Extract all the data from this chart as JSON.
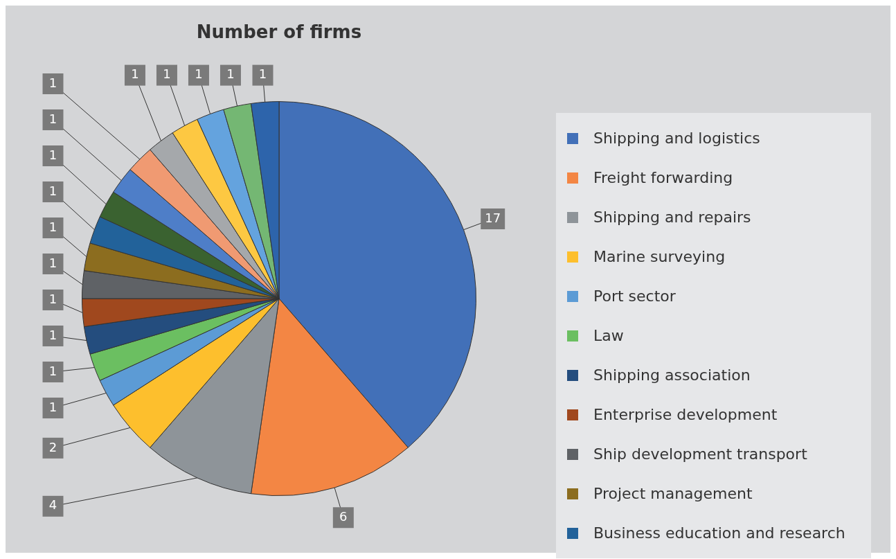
{
  "chart_data": {
    "type": "pie",
    "title": "Number of firms",
    "categories": [
      "Shipping and logistics",
      "Freight forwarding",
      "Shipping and repairs",
      "Marine surveying",
      "Port sector",
      "Law",
      "Shipping association",
      "Enterprise development",
      "Ship development transport",
      "Project management",
      "Business education and research",
      null,
      null,
      null,
      null,
      null,
      null,
      null,
      null
    ],
    "values": [
      17,
      6,
      4,
      2,
      1,
      1,
      1,
      1,
      1,
      1,
      1,
      1,
      1,
      1,
      1,
      1,
      1,
      1,
      1
    ],
    "colors": [
      "#4270b8",
      "#f38644",
      "#8e9499",
      "#fdbf2d",
      "#5c9bd5",
      "#6bbf61",
      "#244d7e",
      "#a0481e",
      "#5f6266",
      "#8c6d1f",
      "#22629a",
      "#3a6230",
      "#4e7ec8",
      "#f09a72",
      "#a5a8ab",
      "#fdc842",
      "#64a3de",
      "#74b773",
      "#2d64ab"
    ],
    "data_labels": true,
    "legend": "right"
  }
}
